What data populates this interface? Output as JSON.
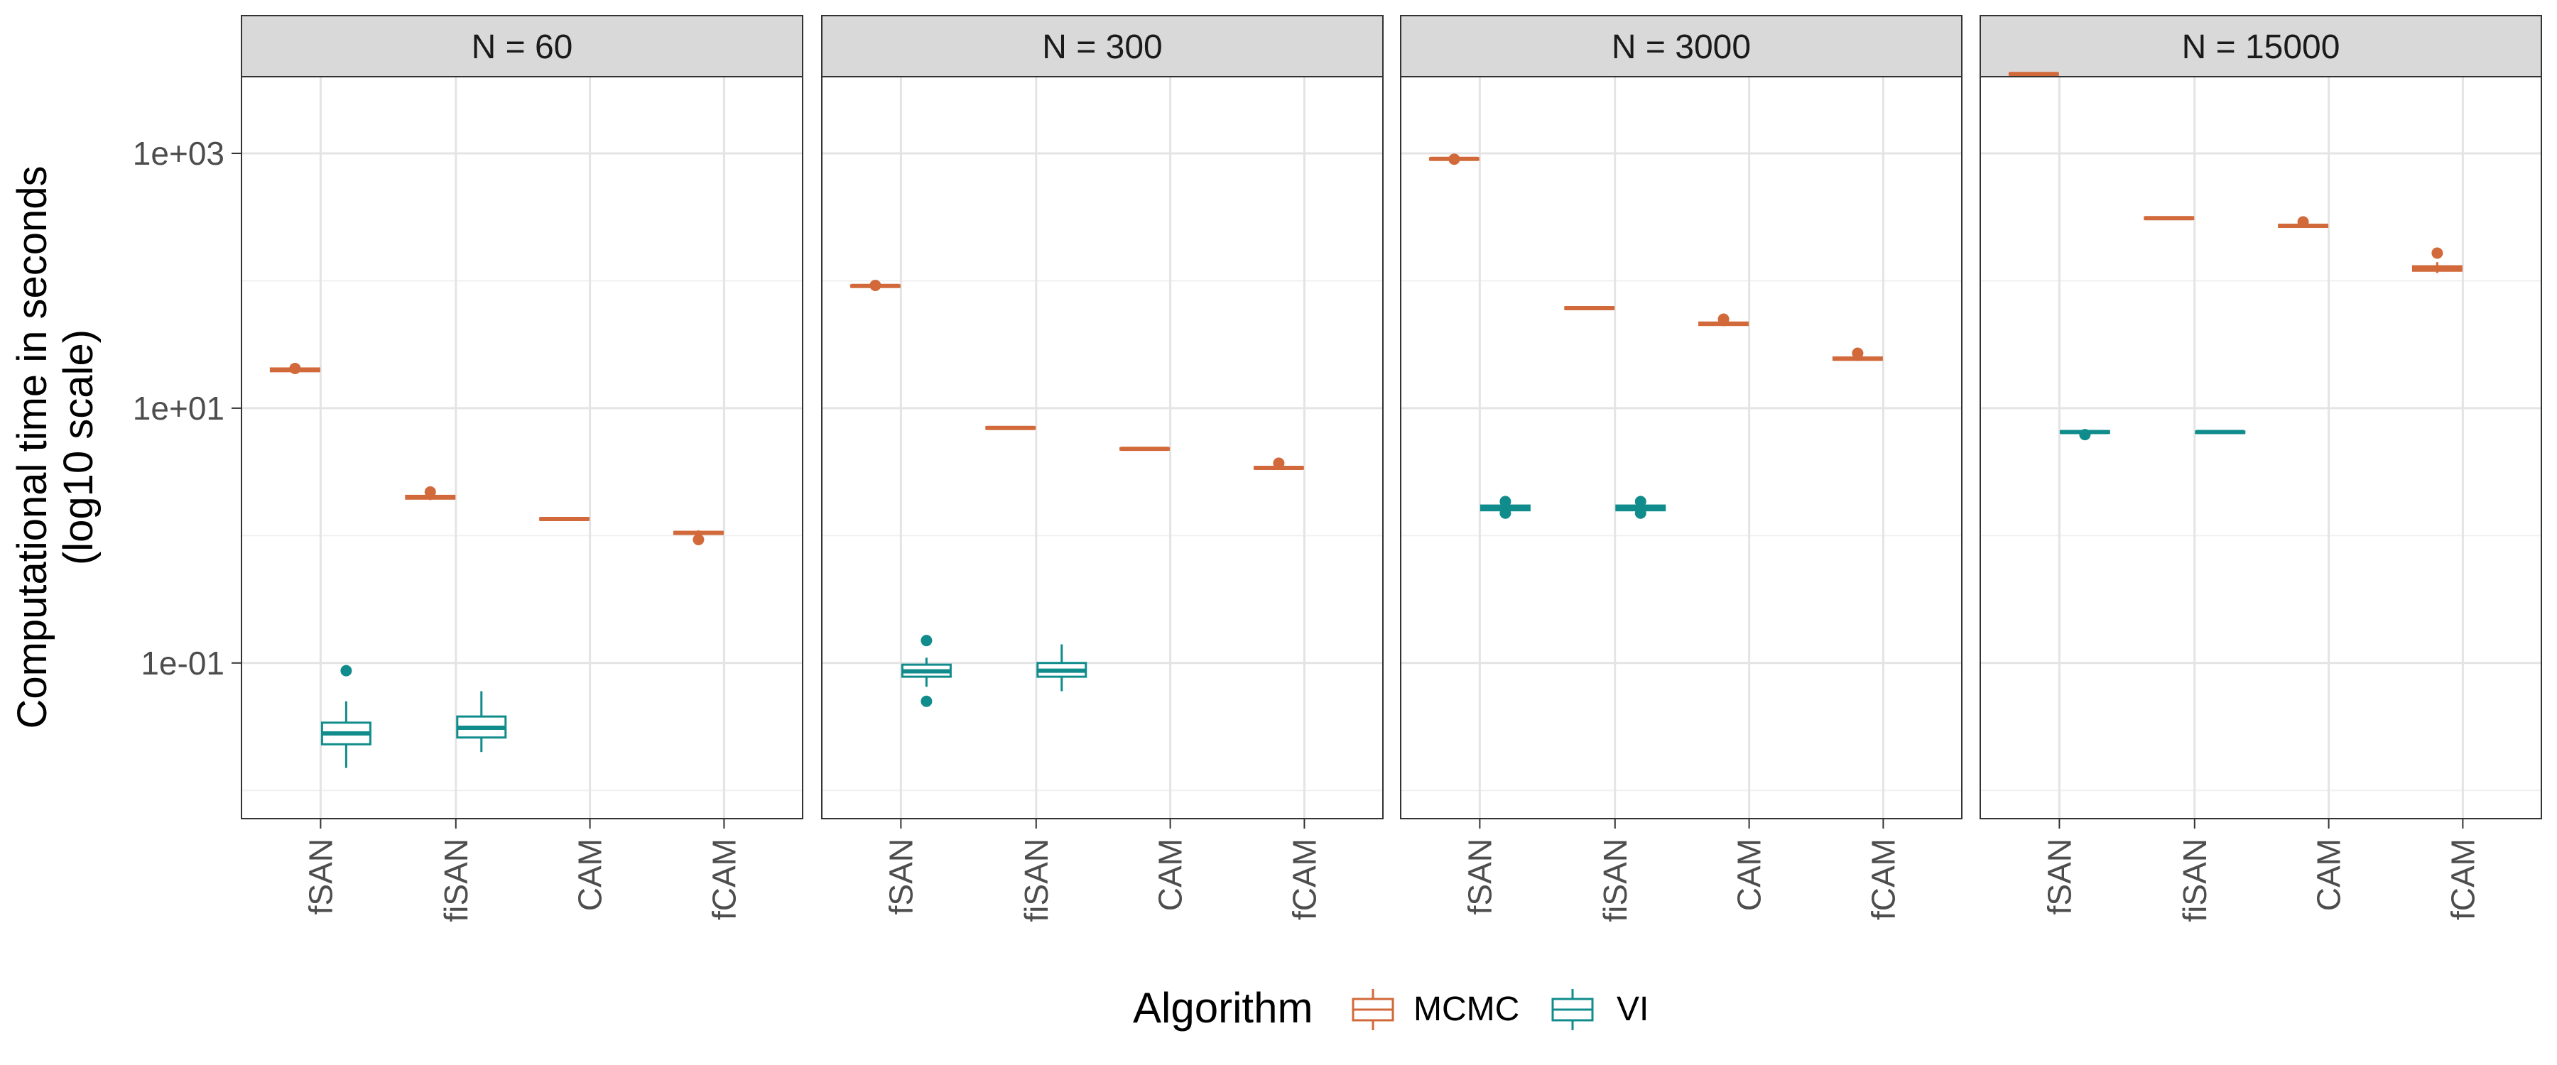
{
  "chart_data": {
    "type": "boxplot",
    "facet_variable": "N",
    "ylabel_line1": "Computational time in seconds",
    "ylabel_line2": "(log10 scale)",
    "xlabel": "",
    "y_scale": "log10",
    "ylim": [
      0.006,
      4000
    ],
    "y_ticks": [
      {
        "value": 0.1,
        "label": "1e-01"
      },
      {
        "value": 10,
        "label": "1e+01"
      },
      {
        "value": 1000,
        "label": "1e+03"
      }
    ],
    "categories": [
      "fSAN",
      "fiSAN",
      "CAM",
      "fCAM"
    ],
    "legend": {
      "title": "Algorithm",
      "position": "bottom",
      "entries": [
        {
          "name": "MCMC",
          "color": "#D2693A"
        },
        {
          "name": "VI",
          "color": "#108C8C"
        }
      ]
    },
    "grid": true,
    "panels": [
      {
        "label": "N = 60",
        "boxes": [
          {
            "category": "fSAN",
            "series": "MCMC",
            "stats": [
              19.0,
              19.5,
              20.0,
              20.5,
              21.0
            ],
            "outliers": [
              20.5
            ]
          },
          {
            "category": "fSAN",
            "series": "VI",
            "stats": [
              0.015,
              0.023,
              0.028,
              0.034,
              0.05
            ],
            "outliers": [
              0.087
            ]
          },
          {
            "category": "fiSAN",
            "series": "MCMC",
            "stats": [
              1.9,
              1.95,
              2.0,
              2.05,
              2.1
            ],
            "outliers": [
              2.2
            ]
          },
          {
            "category": "fiSAN",
            "series": "VI",
            "stats": [
              0.02,
              0.026,
              0.031,
              0.038,
              0.06
            ],
            "outliers": []
          },
          {
            "category": "CAM",
            "series": "MCMC",
            "stats": [
              1.3,
              1.33,
              1.35,
              1.37,
              1.4
            ],
            "outliers": []
          },
          {
            "category": "fCAM",
            "series": "MCMC",
            "stats": [
              1.0,
              1.03,
              1.05,
              1.07,
              1.1
            ],
            "outliers": [
              0.93
            ]
          }
        ]
      },
      {
        "label": "N = 300",
        "boxes": [
          {
            "category": "fSAN",
            "series": "MCMC",
            "stats": [
              88,
              90,
              91,
              92,
              94
            ],
            "outliers": [
              92
            ]
          },
          {
            "category": "fSAN",
            "series": "VI",
            "stats": [
              0.065,
              0.078,
              0.086,
              0.097,
              0.11
            ],
            "outliers": [
              0.15,
              0.05
            ]
          },
          {
            "category": "fiSAN",
            "series": "MCMC",
            "stats": [
              6.8,
              6.9,
              7.0,
              7.1,
              7.2
            ],
            "outliers": []
          },
          {
            "category": "fiSAN",
            "series": "VI",
            "stats": [
              0.06,
              0.078,
              0.087,
              0.1,
              0.14
            ],
            "outliers": []
          },
          {
            "category": "CAM",
            "series": "MCMC",
            "stats": [
              4.7,
              4.75,
              4.8,
              4.85,
              4.9
            ],
            "outliers": []
          },
          {
            "category": "fCAM",
            "series": "MCMC",
            "stats": [
              3.3,
              3.35,
              3.4,
              3.45,
              3.5
            ],
            "outliers": [
              3.7
            ]
          }
        ]
      },
      {
        "label": "N = 3000",
        "boxes": [
          {
            "category": "fSAN",
            "series": "MCMC",
            "stats": [
              880,
              895,
              905,
              915,
              930
            ],
            "outliers": [
              900
            ]
          },
          {
            "category": "fSAN",
            "series": "VI",
            "stats": [
              1.5,
              1.58,
              1.65,
              1.72,
              1.8
            ],
            "outliers": [
              1.85,
              1.5
            ]
          },
          {
            "category": "fiSAN",
            "series": "MCMC",
            "stats": [
              59,
              60,
              61,
              62,
              63
            ],
            "outliers": []
          },
          {
            "category": "fiSAN",
            "series": "VI",
            "stats": [
              1.5,
              1.58,
              1.65,
              1.72,
              1.8
            ],
            "outliers": [
              1.85,
              1.5
            ]
          },
          {
            "category": "CAM",
            "series": "MCMC",
            "stats": [
              44,
              45,
              46,
              47,
              48
            ],
            "outliers": [
              50
            ]
          },
          {
            "category": "fCAM",
            "series": "MCMC",
            "stats": [
              23.5,
              24,
              24.5,
              25,
              25.5
            ],
            "outliers": [
              27
            ]
          }
        ]
      },
      {
        "label": "N = 15000",
        "boxes": [
          {
            "category": "fSAN",
            "series": "MCMC",
            "stats": [
              4050,
              4150,
              4200,
              4250,
              4350
            ],
            "outliers": []
          },
          {
            "category": "fSAN",
            "series": "VI",
            "stats": [
              6.3,
              6.4,
              6.5,
              6.6,
              6.7
            ],
            "outliers": [
              6.2
            ]
          },
          {
            "category": "fiSAN",
            "series": "MCMC",
            "stats": [
              300,
              305,
              310,
              315,
              320
            ],
            "outliers": []
          },
          {
            "category": "fiSAN",
            "series": "VI",
            "stats": [
              6.4,
              6.45,
              6.5,
              6.55,
              6.6
            ],
            "outliers": []
          },
          {
            "category": "CAM",
            "series": "MCMC",
            "stats": [
              260,
              265,
              270,
              275,
              285
            ],
            "outliers": [
              290
            ]
          },
          {
            "category": "fCAM",
            "series": "MCMC",
            "stats": [
              115,
              120,
              125,
              130,
              140
            ],
            "outliers": [
              165
            ]
          }
        ]
      }
    ]
  }
}
